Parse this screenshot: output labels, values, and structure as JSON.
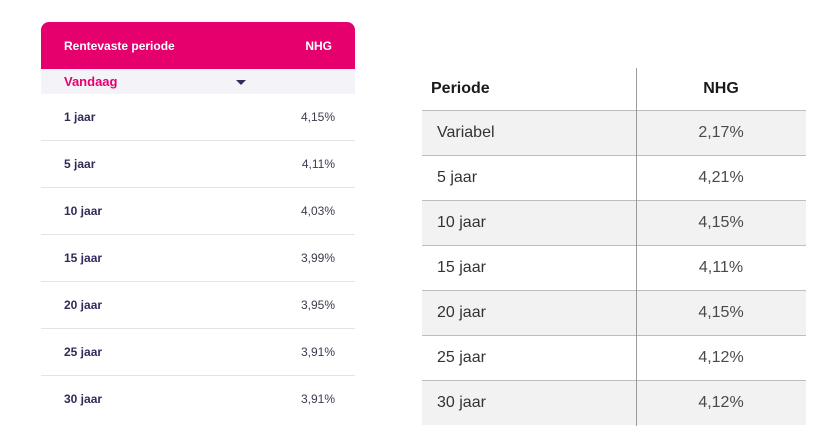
{
  "left_table": {
    "header": {
      "period_label": "Rentevaste periode",
      "nhg_label": "NHG"
    },
    "select": {
      "value": "Vandaag"
    },
    "rows": [
      {
        "period": "1 jaar",
        "rate": "4,15%"
      },
      {
        "period": "5 jaar",
        "rate": "4,11%"
      },
      {
        "period": "10 jaar",
        "rate": "4,03%"
      },
      {
        "period": "15 jaar",
        "rate": "3,99%"
      },
      {
        "period": "20 jaar",
        "rate": "3,95%"
      },
      {
        "period": "25 jaar",
        "rate": "3,91%"
      },
      {
        "period": "30 jaar",
        "rate": "3,91%"
      }
    ],
    "colors": {
      "accent": "#e5006e",
      "text": "#2f2c5a"
    }
  },
  "right_table": {
    "header": {
      "period_label": "Periode",
      "nhg_label": "NHG"
    },
    "rows": [
      {
        "period": "Variabel",
        "rate": "2,17%"
      },
      {
        "period": "5 jaar",
        "rate": "4,21%"
      },
      {
        "period": "10 jaar",
        "rate": "4,15%"
      },
      {
        "period": "15 jaar",
        "rate": "4,11%"
      },
      {
        "period": "20 jaar",
        "rate": "4,15%"
      },
      {
        "period": "25 jaar",
        "rate": "4,12%"
      },
      {
        "period": "30 jaar",
        "rate": "4,12%"
      }
    ]
  }
}
